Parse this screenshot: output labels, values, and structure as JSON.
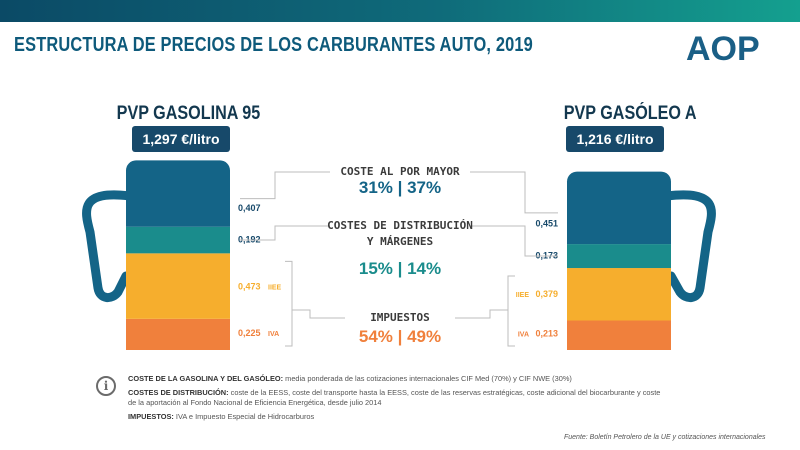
{
  "title": "ESTRUCTURA DE PRECIOS DE LOS CARBURANTES AUTO, 2019",
  "logo": "AOP",
  "colors": {
    "mayor": "#146487",
    "distribucion": "#1a8c8c",
    "ieh": "#f6ae2d",
    "iva": "#f0803c",
    "dark": "#17496a"
  },
  "left_pump": {
    "title": "PVP GASOLINA 95",
    "price": "1,297 €/litro"
  },
  "right_pump": {
    "title": "PVP GASÓLEO A",
    "price": "1,216 €/litro"
  },
  "chart_data": {
    "type": "bar",
    "title": "ESTRUCTURA DE PRECIOS DE LOS CARBURANTES AUTO, 2019",
    "categories": [
      "PVP GASOLINA 95",
      "PVP GASÓLEO A"
    ],
    "units": "€/litro",
    "series": [
      {
        "key": "iva",
        "name": "IVA",
        "values": [
          0.225,
          0.213
        ],
        "labels": [
          "0,225",
          "0,213"
        ]
      },
      {
        "key": "ieh",
        "name": "IIEE",
        "values": [
          0.473,
          0.379
        ],
        "labels": [
          "0,473",
          "0,379"
        ]
      },
      {
        "key": "distribucion",
        "name": "COSTES DE DISTRIBUCIÓN Y MÁRGENES",
        "values": [
          0.192,
          0.173
        ],
        "labels": [
          "0,192",
          "0,173"
        ]
      },
      {
        "key": "mayor",
        "name": "COSTE AL POR MAYOR",
        "values": [
          0.407,
          0.451
        ],
        "labels": [
          "0,407",
          "0,451"
        ]
      }
    ],
    "groups": [
      {
        "name": "COSTE AL POR MAYOR",
        "lines": [
          "COSTE AL POR MAYOR"
        ],
        "pct": "31% | 37%",
        "color": "#146487"
      },
      {
        "name": "COSTES DE DISTRIBUCIÓN Y MÁRGENES",
        "lines": [
          "COSTES DE DISTRIBUCIÓN",
          "Y MÁRGENES"
        ],
        "pct": "15% | 14%",
        "color": "#1a8c8c"
      },
      {
        "name": "IMPUESTOS",
        "lines": [
          "IMPUESTOS"
        ],
        "pct": "54% | 49%",
        "color": "#f0803c"
      }
    ],
    "tags": {
      "ieh": "IIEE",
      "iva": "IVA"
    }
  },
  "notes": [
    {
      "label": "COSTE DE LA GASOLINA Y DEL GASÓLEO:",
      "text": "media ponderada de las cotizaciones internacionales CIF Med (70%) y CIF NWE (30%)"
    },
    {
      "label": "COSTES DE DISTRIBUCIÓN:",
      "text": "coste de la EESS, coste del transporte hasta la EESS, coste de las reservas estratégicas, coste adicional del biocarburante y coste de la aportación al Fondo Nacional de Eficiencia Energética, desde julio 2014"
    },
    {
      "label": "IMPUESTOS:",
      "text": "IVA e Impuesto Especial de Hidrocarburos"
    }
  ],
  "source": "Fuente: Boletín Petrolero de la UE y cotizaciones internacionales"
}
